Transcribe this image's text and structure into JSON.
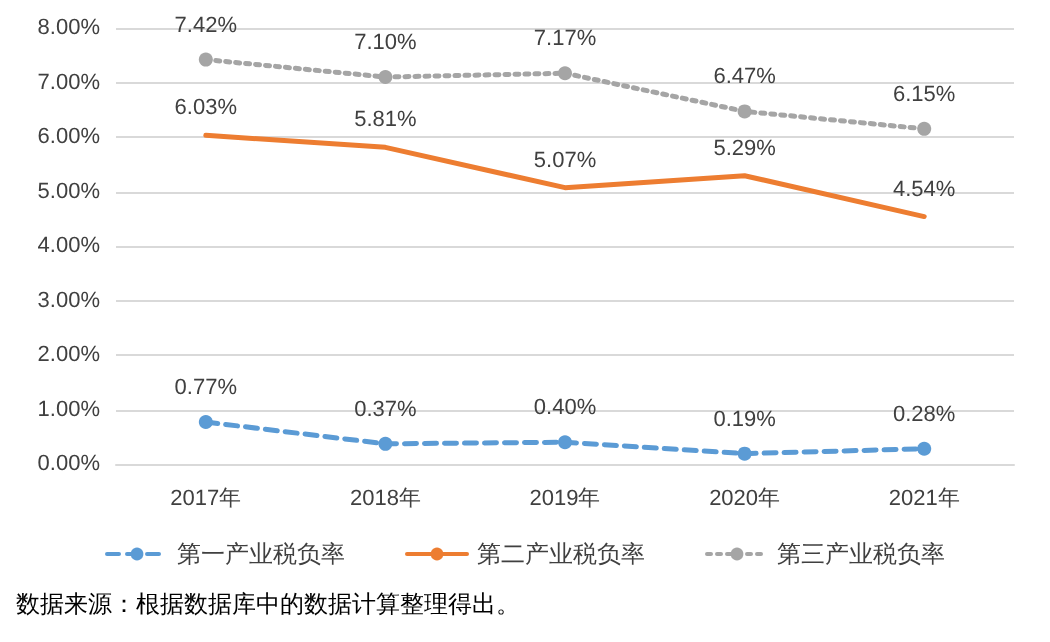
{
  "chart_data": {
    "type": "line",
    "categories": [
      "2017年",
      "2018年",
      "2019年",
      "2020年",
      "2021年"
    ],
    "series": [
      {
        "name": "第一产业税负率",
        "color": "#5b9bd5",
        "line_style": "dashed",
        "marker": "circle",
        "values": [
          0.77,
          0.37,
          0.4,
          0.19,
          0.28
        ],
        "value_labels": [
          "0.77%",
          "0.37%",
          "0.40%",
          "0.19%",
          "0.28%"
        ]
      },
      {
        "name": "第二产业税负率",
        "color": "#ed7d31",
        "line_style": "solid",
        "marker": "none",
        "values": [
          6.03,
          5.81,
          5.07,
          5.29,
          4.54
        ],
        "value_labels": [
          "6.03%",
          "5.81%",
          "5.07%",
          "5.29%",
          "4.54%"
        ]
      },
      {
        "name": "第三产业税负率",
        "color": "#a5a5a5",
        "line_style": "dotted",
        "marker": "circle",
        "values": [
          7.42,
          7.1,
          7.17,
          6.47,
          6.15
        ],
        "value_labels": [
          "7.42%",
          "7.10%",
          "7.17%",
          "6.47%",
          "6.15%"
        ]
      }
    ],
    "ylim": [
      0,
      8
    ],
    "yticks": [
      {
        "value": 0,
        "label": "0.00%"
      },
      {
        "value": 1,
        "label": "1.00%"
      },
      {
        "value": 2,
        "label": "2.00%"
      },
      {
        "value": 3,
        "label": "3.00%"
      },
      {
        "value": 4,
        "label": "4.00%"
      },
      {
        "value": 5,
        "label": "5.00%"
      },
      {
        "value": 6,
        "label": "6.00%"
      },
      {
        "value": 7,
        "label": "7.00%"
      },
      {
        "value": 8,
        "label": "8.00%"
      }
    ],
    "grid": "y",
    "legend": "bottom",
    "annotations": [
      "数据来源：根据数据库中的数据计算整理得出。"
    ]
  }
}
